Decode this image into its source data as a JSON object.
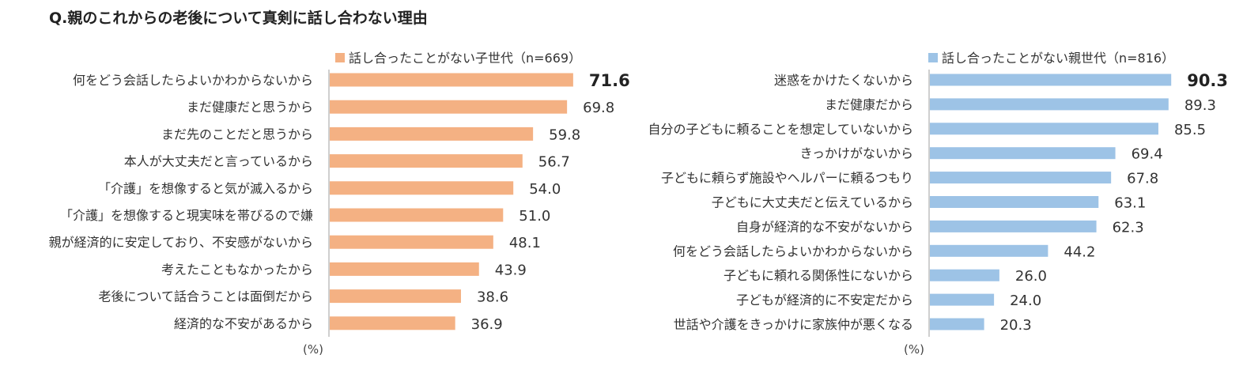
{
  "title": "Q.親のこれからの老後について真剣に話し合わない理由",
  "chart_data": [
    {
      "type": "bar",
      "orientation": "horizontal",
      "legend": "話し合ったことがない子世代（n=669）",
      "color": "#F4B183",
      "unit_label": "(%)",
      "xlim": [
        0,
        100
      ],
      "highlight_index": 0,
      "categories": [
        "何をどう会話したらよいかわからないから",
        "まだ健康だと思うから",
        "まだ先のことだと思うから",
        "本人が大丈夫だと言っているから",
        "「介護」を想像すると気が滅入るから",
        "「介護」を想像すると現実味を帯びるので嫌",
        "親が経済的に安定しており、不安感がないから",
        "考えたこともなかったから",
        "老後について話合うことは面倒だから",
        "経済的な不安があるから"
      ],
      "values": [
        71.6,
        69.8,
        59.8,
        56.7,
        54.0,
        51.0,
        48.1,
        43.9,
        38.6,
        36.9
      ],
      "value_labels": [
        "71.6",
        "69.8",
        "59.8",
        "56.7",
        "54.0",
        "51.0",
        "48.1",
        "43.9",
        "38.6",
        "36.9"
      ]
    },
    {
      "type": "bar",
      "orientation": "horizontal",
      "legend": "話し合ったことがない親世代（n=816）",
      "color": "#9DC3E6",
      "unit_label": "(%)",
      "xlim": [
        0,
        100
      ],
      "highlight_index": 0,
      "categories": [
        "迷惑をかけたくないから",
        "まだ健康だから",
        "自分の子どもに頼ることを想定していないから",
        "きっかけがないから",
        "子どもに頼らず施設やヘルパーに頼るつもり",
        "子どもに大丈夫だと伝えているから",
        "自身が経済的な不安がないから",
        "何をどう会話したらよいかわからないから",
        "子どもに頼れる関係性にないから",
        "子どもが経済的に不安定だから",
        "世話や介護をきっかけに家族仲が悪くなる"
      ],
      "values": [
        90.3,
        89.3,
        85.5,
        69.4,
        67.8,
        63.1,
        62.3,
        44.2,
        26.0,
        24.0,
        20.3
      ],
      "value_labels": [
        "90.3",
        "89.3",
        "85.5",
        "69.4",
        "67.8",
        "63.1",
        "62.3",
        "44.2",
        "26.0",
        "24.0",
        "20.3"
      ]
    }
  ]
}
